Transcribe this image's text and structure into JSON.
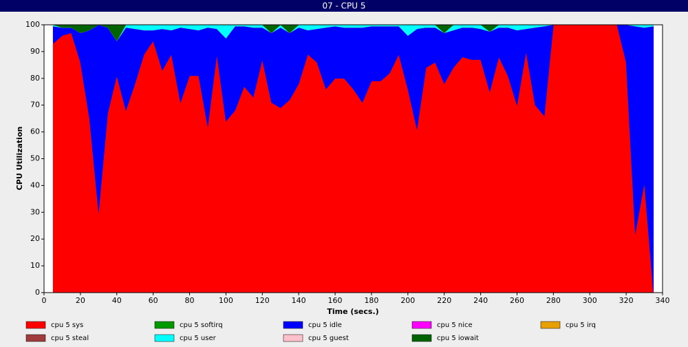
{
  "chart_data": {
    "type": "stacked_area",
    "title": "07 - CPU 5",
    "x_label": "Time (secs.)",
    "y_label": "CPU Utilization",
    "x": [
      5,
      10,
      15,
      20,
      25,
      30,
      35,
      40,
      45,
      50,
      55,
      60,
      65,
      70,
      75,
      80,
      85,
      90,
      95,
      100,
      105,
      110,
      115,
      120,
      125,
      130,
      135,
      140,
      145,
      150,
      155,
      160,
      165,
      170,
      175,
      180,
      185,
      190,
      195,
      200,
      205,
      210,
      215,
      220,
      225,
      230,
      235,
      240,
      245,
      250,
      255,
      260,
      265,
      270,
      275,
      280,
      285,
      290,
      295,
      300,
      305,
      310,
      315,
      320,
      325,
      330,
      335
    ],
    "xlim": [
      0,
      340
    ],
    "xticks": [
      0,
      20,
      40,
      60,
      80,
      100,
      120,
      140,
      160,
      180,
      200,
      220,
      240,
      260,
      280,
      300,
      320,
      340
    ],
    "ylim": [
      0,
      100
    ],
    "yticks": [
      0,
      10,
      20,
      30,
      40,
      50,
      60,
      70,
      80,
      90,
      100
    ],
    "series": [
      {
        "name": "cpu 5 sys",
        "color": "#ff0000",
        "values": [
          93,
          96,
          97,
          86,
          65,
          30,
          67,
          81,
          68,
          78,
          89,
          94,
          83,
          89,
          71,
          81,
          81,
          62,
          89,
          64,
          68,
          77,
          73,
          87,
          71,
          69,
          72,
          78,
          89,
          86,
          76,
          80,
          80,
          76,
          71,
          79,
          79,
          82,
          89,
          76,
          61,
          84,
          86,
          78,
          84,
          88,
          87,
          87,
          75,
          88,
          81,
          70,
          90,
          70,
          66,
          100,
          100,
          100,
          100,
          100,
          100,
          100,
          100,
          86,
          22,
          41,
          0
        ]
      },
      {
        "name": "cpu 5 softirq",
        "color": "#009900",
        "values": [
          0,
          0,
          0,
          0,
          0,
          0,
          0,
          0,
          0,
          0,
          0,
          0,
          0,
          0,
          0,
          0,
          0,
          0,
          0,
          0,
          0,
          0,
          0,
          0,
          0,
          0,
          0,
          0,
          0,
          0,
          0,
          0,
          0,
          0,
          0,
          0,
          0,
          0,
          0,
          0,
          0,
          0,
          0,
          0,
          0,
          0,
          0,
          0,
          0,
          0,
          0,
          0,
          0,
          0,
          0,
          0,
          0,
          0,
          0,
          0,
          0,
          0,
          0,
          0,
          0,
          0,
          0
        ]
      },
      {
        "name": "cpu 5 idle",
        "color": "#0000ff",
        "values": [
          6.5,
          3,
          2,
          11,
          33,
          70,
          32,
          13,
          31,
          20.5,
          9,
          4,
          15.5,
          9,
          28,
          17.5,
          17,
          37,
          9.5,
          31,
          31.5,
          22.5,
          26,
          12,
          26,
          30,
          25,
          21,
          9,
          12.5,
          23,
          19.5,
          19,
          23,
          28,
          20.5,
          20.5,
          17.5,
          10.5,
          20,
          37.5,
          15,
          13,
          19,
          14,
          11,
          12,
          11.5,
          22.5,
          11,
          18,
          28,
          8.5,
          29,
          33.5,
          0,
          0,
          0,
          0,
          0,
          0,
          0,
          0,
          14,
          77.5,
          58,
          99.5
        ]
      },
      {
        "name": "cpu 5 nice",
        "color": "#ff00ff",
        "values": [
          0,
          0,
          0,
          0,
          0,
          0,
          0,
          0,
          0,
          0,
          0,
          0,
          0,
          0,
          0,
          0,
          0,
          0,
          0,
          0,
          0,
          0,
          0,
          0,
          0,
          0,
          0,
          0,
          0,
          0,
          0,
          0,
          0,
          0,
          0,
          0,
          0,
          0,
          0,
          0,
          0,
          0,
          0,
          0,
          0,
          0,
          0,
          0,
          0,
          0,
          0,
          0,
          0,
          0,
          0,
          0,
          0,
          0,
          0,
          0,
          0,
          0,
          0,
          0,
          0,
          0,
          0
        ]
      },
      {
        "name": "cpu 5 irq",
        "color": "#e8a000",
        "values": [
          0,
          0,
          0,
          0,
          0,
          0,
          0,
          0,
          0,
          0,
          0,
          0,
          0,
          0,
          0,
          0,
          0,
          0,
          0,
          0,
          0,
          0,
          0,
          0,
          0,
          0,
          0,
          0,
          0,
          0,
          0,
          0,
          0,
          0,
          0,
          0,
          0,
          0,
          0,
          0,
          0,
          0,
          0,
          0,
          0,
          0,
          0,
          0,
          0,
          0,
          0,
          0,
          0,
          0,
          0,
          0,
          0,
          0,
          0,
          0,
          0,
          0,
          0,
          0,
          0,
          0,
          0
        ]
      },
      {
        "name": "cpu 5 steal",
        "color": "#a03c3c",
        "values": [
          0,
          0,
          0,
          0,
          0,
          0,
          0,
          0,
          0,
          0,
          0,
          0,
          0,
          0,
          0,
          0,
          0,
          0,
          0,
          0,
          0,
          0,
          0,
          0,
          0,
          0,
          0,
          0,
          0,
          0,
          0,
          0,
          0,
          0,
          0,
          0,
          0,
          0,
          0,
          0,
          0,
          0,
          0,
          0,
          0,
          0,
          0,
          0,
          0,
          0,
          0,
          0,
          0,
          0,
          0,
          0,
          0,
          0,
          0,
          0,
          0,
          0,
          0,
          0,
          0,
          0,
          0
        ]
      },
      {
        "name": "cpu 5 user",
        "color": "#00ffff",
        "values": [
          0.5,
          0,
          0,
          0,
          0,
          0,
          0,
          0,
          1,
          1.5,
          2,
          2,
          1.5,
          2,
          1,
          1.5,
          2,
          1,
          1.5,
          5,
          0.5,
          0.5,
          1,
          1,
          0,
          1,
          0,
          1,
          2,
          1.5,
          1,
          0.5,
          1,
          1,
          1,
          0.5,
          0.5,
          0.5,
          0.5,
          4,
          1.5,
          1,
          1,
          0,
          2,
          1,
          1,
          1.5,
          0,
          1,
          1,
          2,
          1.5,
          1,
          0.5,
          0,
          0,
          0,
          0,
          0,
          0,
          0,
          0,
          0,
          0.5,
          1,
          0.5
        ]
      },
      {
        "name": "cpu 5 guest",
        "color": "#ffc0cb",
        "values": [
          0,
          0,
          0,
          0,
          0,
          0,
          0,
          0,
          0,
          0,
          0,
          0,
          0,
          0,
          0,
          0,
          0,
          0,
          0,
          0,
          0,
          0,
          0,
          0,
          0,
          0,
          0,
          0,
          0,
          0,
          0,
          0,
          0,
          0,
          0,
          0,
          0,
          0,
          0,
          0,
          0,
          0,
          0,
          0,
          0,
          0,
          0,
          0,
          0,
          0,
          0,
          0,
          0,
          0,
          0,
          0,
          0,
          0,
          0,
          0,
          0,
          0,
          0,
          0,
          0,
          0,
          0
        ]
      },
      {
        "name": "cpu 5 iowait",
        "color": "#006400",
        "values": [
          0,
          1,
          1,
          3,
          2,
          0,
          1,
          6,
          0,
          0,
          0,
          0,
          0,
          0,
          0,
          0,
          0,
          0,
          0,
          0,
          0,
          0,
          0,
          0,
          3,
          0,
          3,
          0,
          0,
          0,
          0,
          0,
          0,
          0,
          0,
          0,
          0,
          0,
          0,
          0,
          0,
          0,
          0,
          3,
          0,
          0,
          0,
          0,
          2.5,
          0,
          0,
          0,
          0,
          0,
          0,
          0,
          0,
          0,
          0,
          0,
          0,
          0,
          0,
          0,
          0,
          0,
          0
        ]
      }
    ]
  }
}
